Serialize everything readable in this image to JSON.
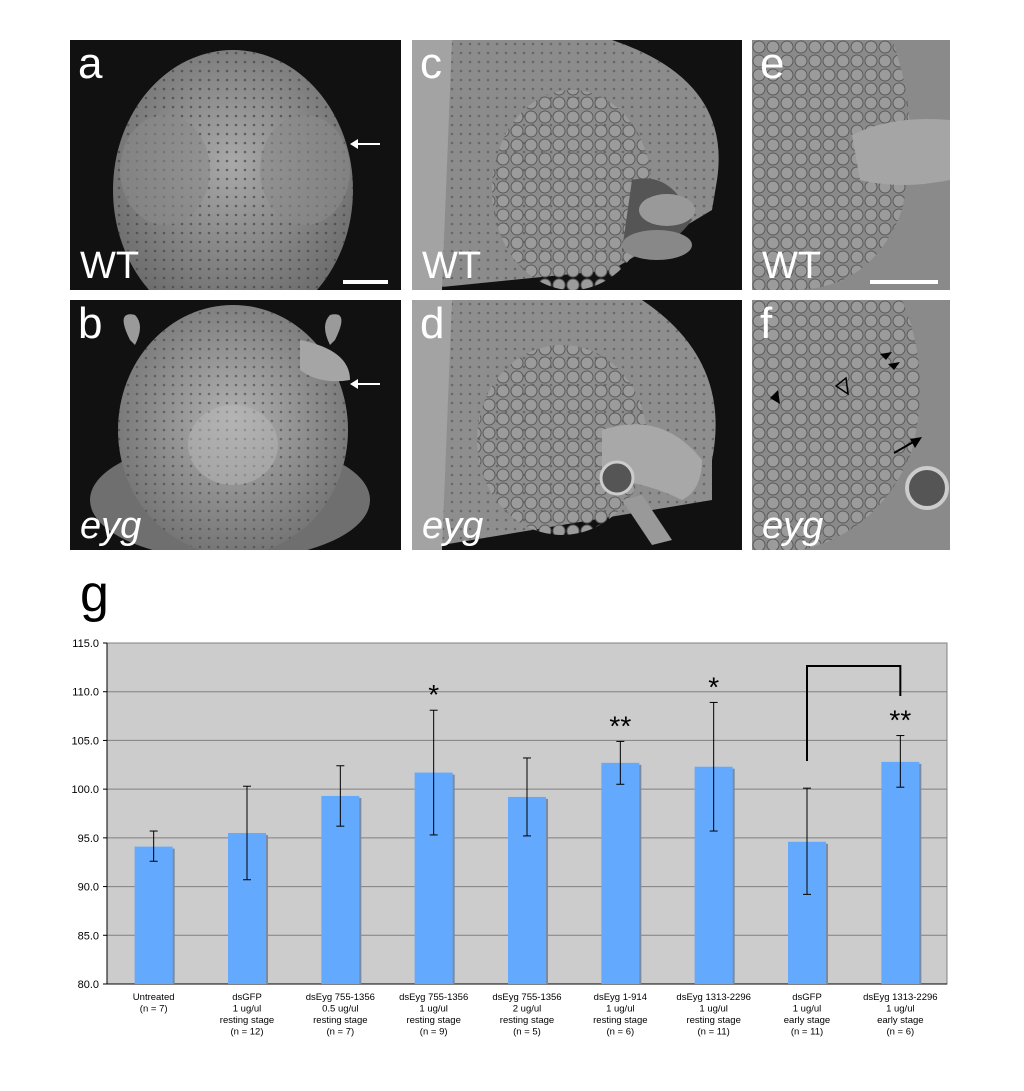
{
  "panels": [
    {
      "letter": "a",
      "label": "WT"
    },
    {
      "letter": "b",
      "label": "eyg"
    },
    {
      "letter": "c",
      "label": "WT"
    },
    {
      "letter": "d",
      "label": "eyg"
    },
    {
      "letter": "e",
      "label": "WT"
    },
    {
      "letter": "f",
      "label": "eyg"
    }
  ],
  "chart_panel_letter": "g",
  "chart_data": {
    "type": "bar",
    "title": "",
    "xlabel": "",
    "ylabel": "",
    "ylim": [
      80.0,
      115.0
    ],
    "yticks": [
      "80.0",
      "85.0",
      "90.0",
      "95.0",
      "100.0",
      "105.0",
      "110.0",
      "115.0"
    ],
    "grid": true,
    "bar_color": "#63aaff",
    "plot_background": "#cccccc",
    "categories": [
      [
        "Untreated",
        "(n = 7)"
      ],
      [
        "dsGFP",
        "1 ug/ul",
        "resting stage",
        "(n = 12)"
      ],
      [
        "dsEyg 755-1356",
        "0.5 ug/ul",
        "resting stage",
        "(n = 7)"
      ],
      [
        "dsEyg 755-1356",
        "1 ug/ul",
        "resting stage",
        "(n = 9)"
      ],
      [
        "dsEyg 755-1356",
        "2 ug/ul",
        "resting stage",
        "(n = 5)"
      ],
      [
        "dsEyg 1-914",
        "1 ug/ul",
        "resting stage",
        "(n = 6)"
      ],
      [
        "dsEyg 1313-2296",
        "1 ug/ul",
        "resting stage",
        "(n = 11)"
      ],
      [
        "dsGFP",
        "1 ug/ul",
        "early stage",
        "(n = 11)"
      ],
      [
        "dsEyg 1313-2296",
        "1 ug/ul",
        "early stage",
        "(n = 6)"
      ]
    ],
    "values": [
      94.1,
      95.5,
      99.3,
      101.7,
      99.2,
      102.7,
      102.3,
      94.6,
      102.8
    ],
    "error_upper": [
      95.7,
      100.3,
      102.4,
      108.1,
      103.2,
      104.9,
      108.9,
      100.1,
      105.5
    ],
    "error_lower": [
      92.6,
      90.7,
      96.2,
      95.3,
      95.2,
      100.5,
      95.7,
      89.2,
      100.2
    ],
    "significance": [
      "",
      "",
      "",
      "*",
      "",
      "**",
      "*",
      "",
      "**"
    ],
    "comparison_bracket": [
      7,
      8
    ]
  }
}
